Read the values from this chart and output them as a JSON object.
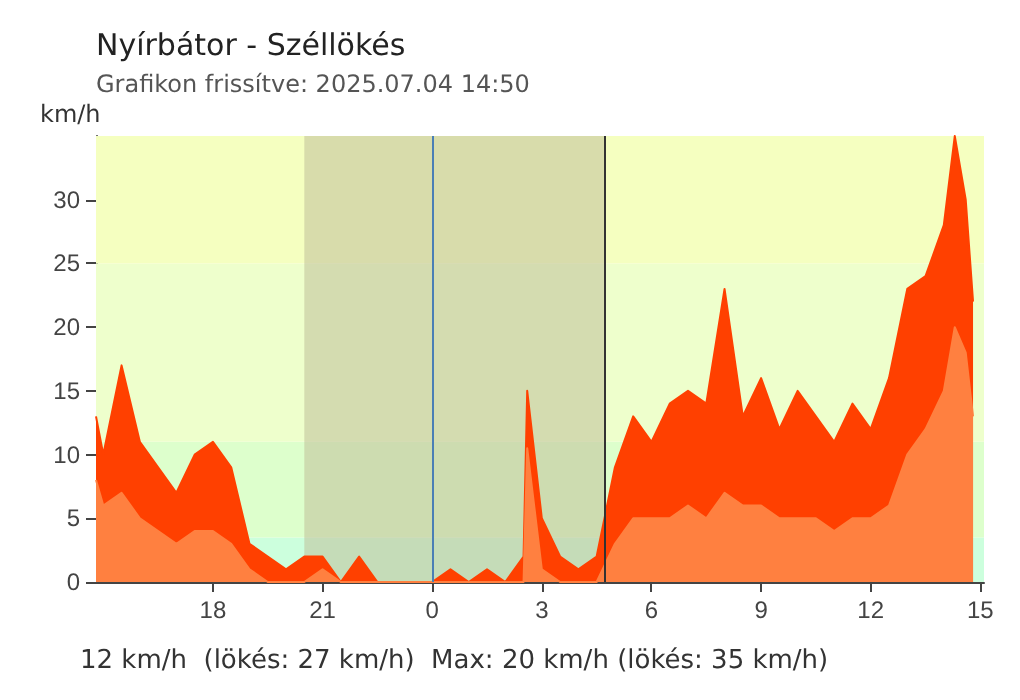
{
  "chart_data": {
    "type": "area",
    "title": "Nyírbátor - Széllökés",
    "subtitle": "Grafikon frissítve: 2025.07.04 14:50",
    "ylabel": "km/h",
    "annotations": [
      "12 km/h  (lökés: 27 km/h)  Max: 20 km/h (lökés: 35 km/h)"
    ],
    "x": [
      "2025-07-03T14:48",
      "2025-07-03T15:00",
      "2025-07-03T15:30",
      "2025-07-03T16:00",
      "2025-07-03T16:30",
      "2025-07-03T17:00",
      "2025-07-03T17:30",
      "2025-07-03T18:00",
      "2025-07-03T18:30",
      "2025-07-03T19:00",
      "2025-07-03T19:30",
      "2025-07-03T20:00",
      "2025-07-03T20:30",
      "2025-07-03T21:00",
      "2025-07-03T21:30",
      "2025-07-03T22:00",
      "2025-07-03T22:30",
      "2025-07-03T23:00",
      "2025-07-03T23:30",
      "2025-07-04T00:00",
      "2025-07-04T00:30",
      "2025-07-04T01:00",
      "2025-07-04T01:30",
      "2025-07-04T02:00",
      "2025-07-04T02:30",
      "2025-07-04T02:36",
      "2025-07-04T03:00",
      "2025-07-04T03:30",
      "2025-07-04T04:00",
      "2025-07-04T04:30",
      "2025-07-04T05:00",
      "2025-07-04T05:30",
      "2025-07-04T06:00",
      "2025-07-04T06:30",
      "2025-07-04T07:00",
      "2025-07-04T07:30",
      "2025-07-04T08:00",
      "2025-07-04T08:30",
      "2025-07-04T09:00",
      "2025-07-04T09:30",
      "2025-07-04T10:00",
      "2025-07-04T10:30",
      "2025-07-04T11:00",
      "2025-07-04T11:30",
      "2025-07-04T12:00",
      "2025-07-04T12:30",
      "2025-07-04T13:00",
      "2025-07-04T13:30",
      "2025-07-04T14:00",
      "2025-07-04T14:18",
      "2025-07-04T14:36",
      "2025-07-04T14:48"
    ],
    "series": [
      {
        "color": "#ff4000",
        "values": [
          13,
          10,
          17,
          11,
          9,
          7,
          10,
          11,
          9,
          3,
          2,
          1,
          2,
          2,
          0,
          2,
          0,
          0,
          0,
          0,
          1,
          0,
          1,
          0,
          2,
          15,
          5,
          2,
          1,
          2,
          9,
          13,
          11,
          14,
          15,
          14,
          23,
          13,
          16,
          12,
          15,
          13,
          11,
          14,
          12,
          16,
          23,
          24,
          28,
          35,
          30,
          22
        ]
      },
      {
        "color": "#ff8040",
        "values": [
          8,
          6,
          7,
          5,
          4,
          3,
          4,
          4,
          3,
          1,
          0,
          0,
          0,
          1,
          0,
          0,
          0,
          0,
          0,
          0,
          0,
          0,
          0,
          0,
          0,
          10.5,
          1,
          0,
          0,
          0,
          3,
          5,
          5,
          5,
          6,
          5,
          7,
          6,
          6,
          5,
          5,
          5,
          4,
          5,
          5,
          6,
          10,
          12,
          15,
          20,
          18,
          13
        ]
      }
    ],
    "xlim": [
      "2025-07-03T14:48",
      "2025-07-04T15:06"
    ],
    "xticks": [
      {
        "value": "2025-07-03T18:00",
        "label": "18"
      },
      {
        "value": "2025-07-03T21:00",
        "label": "21"
      },
      {
        "value": "2025-07-04T00:00",
        "label": "0"
      },
      {
        "value": "2025-07-04T03:00",
        "label": "3"
      },
      {
        "value": "2025-07-04T06:00",
        "label": "6"
      },
      {
        "value": "2025-07-04T09:00",
        "label": "9"
      },
      {
        "value": "2025-07-04T12:00",
        "label": "12"
      },
      {
        "value": "2025-07-04T15:00",
        "label": "15"
      }
    ],
    "ylim": [
      0,
      35
    ],
    "yticks": [
      0,
      5,
      10,
      15,
      20,
      25,
      30
    ],
    "bands": [
      {
        "axis": "y",
        "from": 0,
        "to": 3.5,
        "color": "#ccffdd"
      },
      {
        "axis": "y",
        "from": 3.5,
        "to": 11,
        "color": "#ddffcc"
      },
      {
        "axis": "y",
        "from": 11,
        "to": 25,
        "color": "#eeffcc"
      },
      {
        "axis": "y",
        "from": 25,
        "to": 35,
        "color": "#f5ffc0"
      },
      {
        "axis": "x",
        "from": "2025-07-03T20:30",
        "to": "2025-07-04T04:42",
        "color": "#bfbf99"
      }
    ],
    "ref_lines": [
      {
        "axis": "x",
        "value": "2025-07-04T00:00",
        "color": "#4a7fb5"
      },
      {
        "axis": "x",
        "value": "2025-07-04T04:42",
        "color": "#333333"
      }
    ],
    "marker": "none"
  }
}
